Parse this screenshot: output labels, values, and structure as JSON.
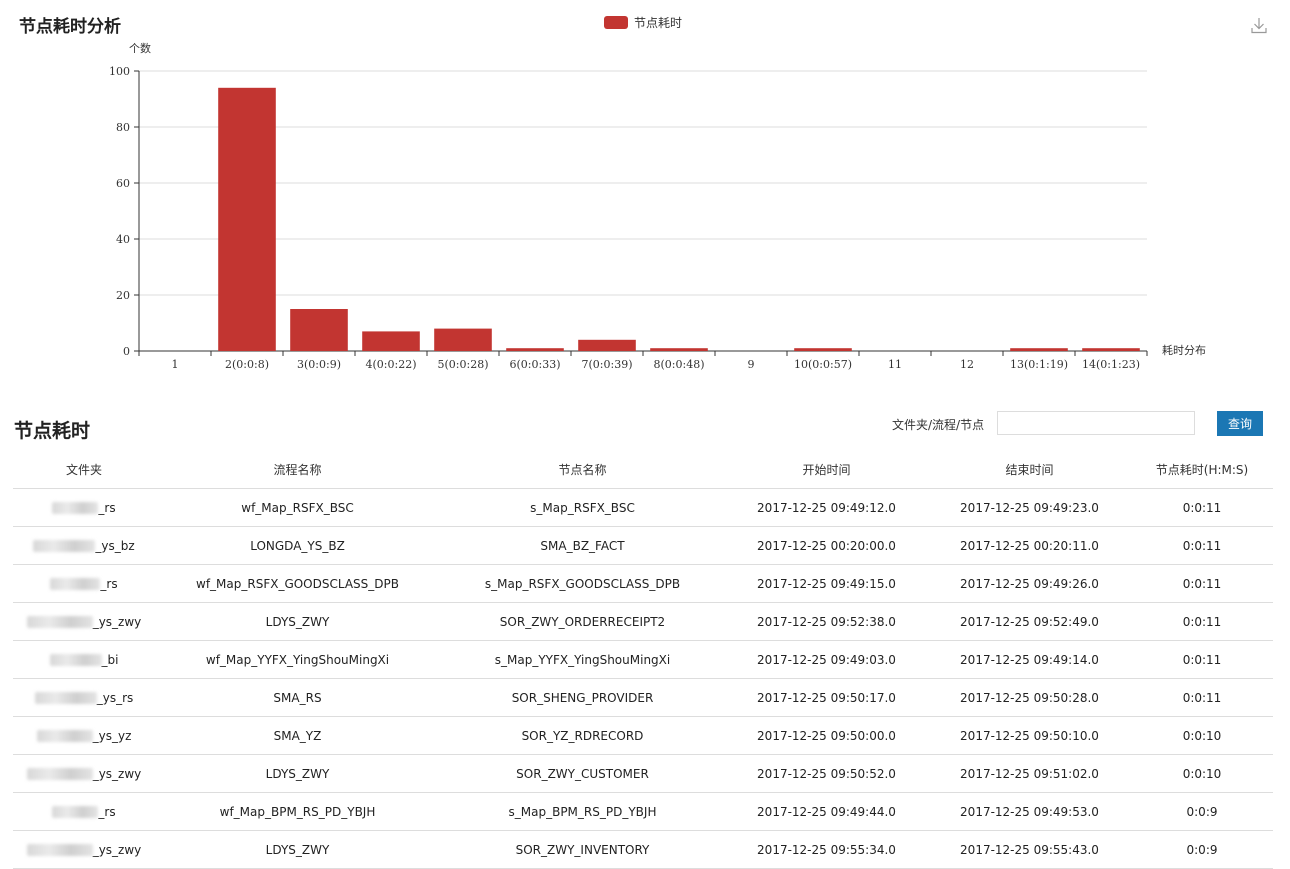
{
  "chart_title": "节点耗时分析",
  "legend_label": "节点耗时",
  "download_icon": "download-icon",
  "chart_data": {
    "type": "bar",
    "title": "节点耗时分析",
    "ylabel": "个数",
    "xlabel": "耗时分布",
    "ylim": [
      0,
      100
    ],
    "yticks": [
      0,
      20,
      40,
      60,
      80,
      100
    ],
    "grid": true,
    "legend_placement": "top-center",
    "color": "#c23531",
    "categories": [
      "1",
      "2(0:0:8)",
      "3(0:0:9)",
      "4(0:0:22)",
      "5(0:0:28)",
      "6(0:0:33)",
      "7(0:0:39)",
      "8(0:0:48)",
      "9",
      "10(0:0:57)",
      "11",
      "12",
      "13(0:1:19)",
      "14(0:1:23)"
    ],
    "series": [
      {
        "name": "节点耗时",
        "values": [
          0,
          94,
          15,
          7,
          8,
          1,
          4,
          1,
          0,
          1,
          0,
          0,
          1,
          1
        ]
      }
    ]
  },
  "table_section": {
    "title": "节点耗时",
    "search_label": "文件夹/流程/节点",
    "search_value": "",
    "query_button": "查询",
    "columns": [
      "文件夹",
      "流程名称",
      "节点名称",
      "开始时间",
      "结束时间",
      "节点耗时(H:M:S)"
    ],
    "rows": [
      {
        "folder_suffix": "_rs",
        "flow": "wf_Map_RSFX_BSC",
        "node": "s_Map_RSFX_BSC",
        "start": "2017-12-25 09:49:12.0",
        "end": "2017-12-25 09:49:23.0",
        "duration": "0:0:11"
      },
      {
        "folder_suffix": "_ys_bz",
        "flow": "LONGDA_YS_BZ",
        "node": "SMA_BZ_FACT",
        "start": "2017-12-25 00:20:00.0",
        "end": "2017-12-25 00:20:11.0",
        "duration": "0:0:11"
      },
      {
        "folder_suffix": "_rs",
        "flow": "wf_Map_RSFX_GOODSCLASS_DPB",
        "node": "s_Map_RSFX_GOODSCLASS_DPB",
        "start": "2017-12-25 09:49:15.0",
        "end": "2017-12-25 09:49:26.0",
        "duration": "0:0:11"
      },
      {
        "folder_suffix": "_ys_zwy",
        "flow": "LDYS_ZWY",
        "node": "SOR_ZWY_ORDERRECEIPT2",
        "start": "2017-12-25 09:52:38.0",
        "end": "2017-12-25 09:52:49.0",
        "duration": "0:0:11"
      },
      {
        "folder_suffix": "_bi",
        "flow": "wf_Map_YYFX_YingShouMingXi",
        "node": "s_Map_YYFX_YingShouMingXi",
        "start": "2017-12-25 09:49:03.0",
        "end": "2017-12-25 09:49:14.0",
        "duration": "0:0:11"
      },
      {
        "folder_suffix": "_ys_rs",
        "flow": "SMA_RS",
        "node": "SOR_SHENG_PROVIDER",
        "start": "2017-12-25 09:50:17.0",
        "end": "2017-12-25 09:50:28.0",
        "duration": "0:0:11"
      },
      {
        "folder_suffix": "_ys_yz",
        "flow": "SMA_YZ",
        "node": "SOR_YZ_RDRECORD",
        "start": "2017-12-25 09:50:00.0",
        "end": "2017-12-25 09:50:10.0",
        "duration": "0:0:10"
      },
      {
        "folder_suffix": "_ys_zwy",
        "flow": "LDYS_ZWY",
        "node": "SOR_ZWY_CUSTOMER",
        "start": "2017-12-25 09:50:52.0",
        "end": "2017-12-25 09:51:02.0",
        "duration": "0:0:10"
      },
      {
        "folder_suffix": "_rs",
        "flow": "wf_Map_BPM_RS_PD_YBJH",
        "node": "s_Map_BPM_RS_PD_YBJH",
        "start": "2017-12-25 09:49:44.0",
        "end": "2017-12-25 09:49:53.0",
        "duration": "0:0:9"
      },
      {
        "folder_suffix": "_ys_zwy",
        "flow": "LDYS_ZWY",
        "node": "SOR_ZWY_INVENTORY",
        "start": "2017-12-25 09:55:34.0",
        "end": "2017-12-25 09:55:43.0",
        "duration": "0:0:9"
      }
    ]
  }
}
